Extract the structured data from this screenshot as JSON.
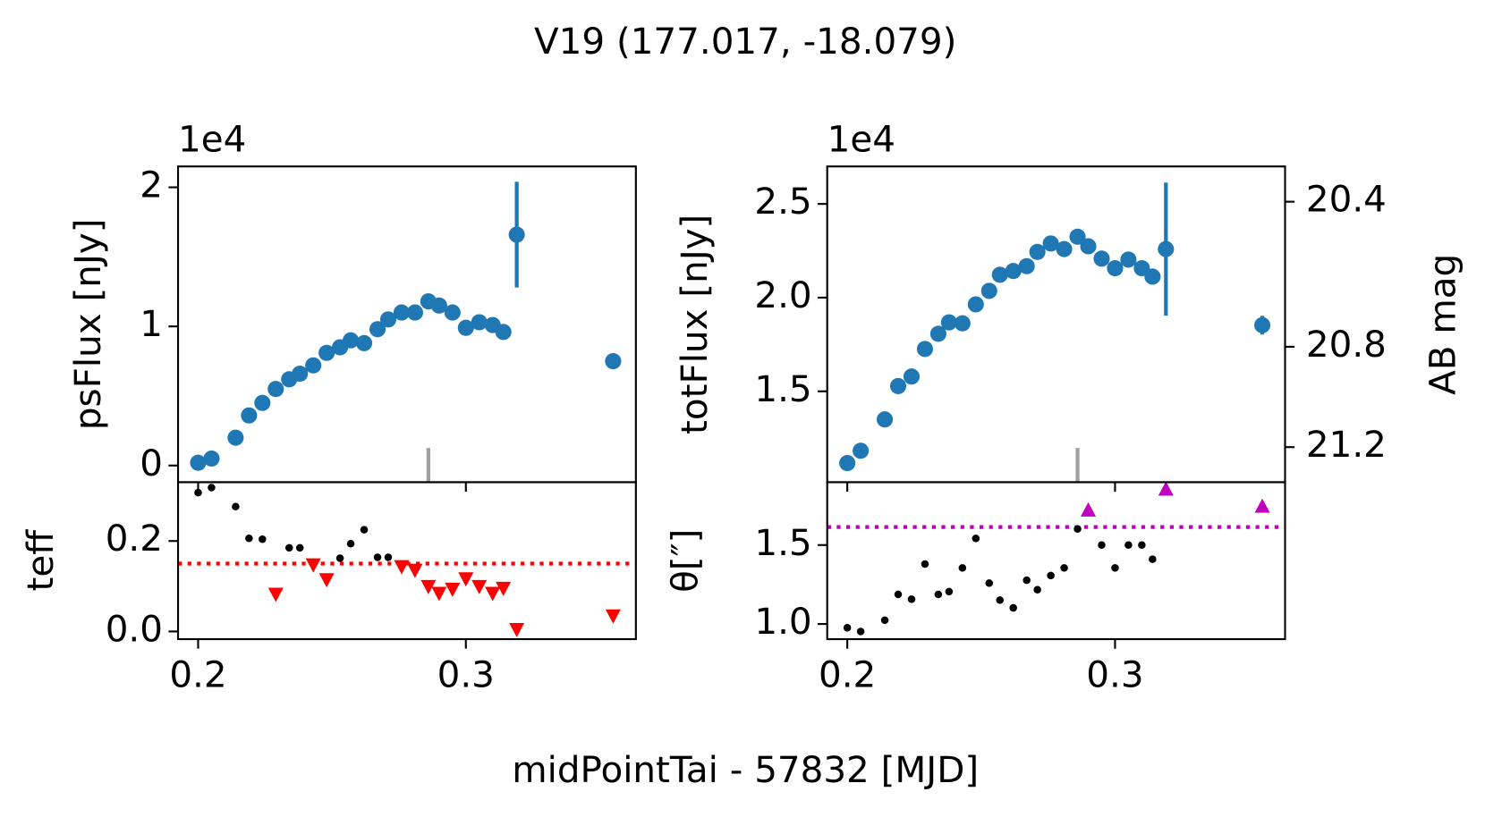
{
  "title": "V19 (177.017, -18.079)",
  "xlabel": "midPointTai - 57832 [MJD]",
  "chart_data": [
    {
      "type": "errorbar",
      "ylabel": "psFlux [nJy]",
      "offset_label": "1e4",
      "xlim": [
        0.1925,
        0.3635
      ],
      "xticks": [
        0.2,
        0.3
      ],
      "xticklabels": false,
      "ylim": [
        -0.12,
        2.15
      ],
      "yticks": [
        0,
        1,
        2
      ],
      "marker_x": 0.286,
      "marker_color": "#a0a0a0",
      "series": [
        {
          "color": "#1f77b4",
          "x": [
            0.2,
            0.205,
            0.214,
            0.219,
            0.224,
            0.229,
            0.234,
            0.238,
            0.243,
            0.248,
            0.253,
            0.257,
            0.262,
            0.267,
            0.271,
            0.276,
            0.281,
            0.286,
            0.29,
            0.295,
            0.3,
            0.305,
            0.31,
            0.314,
            0.319,
            0.355
          ],
          "values": [
            0.02,
            0.05,
            0.2,
            0.36,
            0.45,
            0.55,
            0.62,
            0.66,
            0.72,
            0.81,
            0.85,
            0.9,
            0.88,
            0.98,
            1.05,
            1.1,
            1.1,
            1.18,
            1.15,
            1.1,
            0.99,
            1.03,
            1.01,
            0.96,
            1.66,
            0.75
          ],
          "errors": [
            0.02,
            0.02,
            0.02,
            0.02,
            0.02,
            0.02,
            0.02,
            0.02,
            0.02,
            0.02,
            0.02,
            0.02,
            0.02,
            0.02,
            0.02,
            0.02,
            0.02,
            0.02,
            0.02,
            0.02,
            0.02,
            0.02,
            0.02,
            0.02,
            0.38,
            0.04
          ]
        }
      ]
    },
    {
      "type": "scatter",
      "ylabel": "teff",
      "xlim": [
        0.1925,
        0.3635
      ],
      "xticks": [
        0.2,
        0.3
      ],
      "xticklabels": true,
      "ylim": [
        -0.017,
        0.33
      ],
      "yticks": [
        {
          "value": 0,
          "label": "0.0"
        },
        0.2
      ],
      "hline": {
        "value": 0.15,
        "color": "#ff0000"
      },
      "series": [
        {
          "color": "#000000",
          "marker": "dot",
          "x": [
            0.2,
            0.205,
            0.214,
            0.219,
            0.224,
            0.234,
            0.238,
            0.253,
            0.257,
            0.262,
            0.267,
            0.271
          ],
          "values": [
            0.307,
            0.318,
            0.276,
            0.206,
            0.204,
            0.185,
            0.185,
            0.162,
            0.194,
            0.225,
            0.164,
            0.164
          ]
        },
        {
          "color": "#ff0000",
          "marker": "triangle-down",
          "x": [
            0.229,
            0.243,
            0.248,
            0.276,
            0.281,
            0.286,
            0.29,
            0.295,
            0.3,
            0.305,
            0.31,
            0.314,
            0.319,
            0.355
          ],
          "values": [
            0.082,
            0.147,
            0.114,
            0.143,
            0.135,
            0.099,
            0.084,
            0.093,
            0.116,
            0.099,
            0.084,
            0.095,
            0.004,
            0.034
          ]
        }
      ]
    },
    {
      "type": "errorbar",
      "ylabel": "totFlux [nJy]",
      "offset_label": "1e4",
      "y2label": "AB mag",
      "xlim": [
        0.1925,
        0.3635
      ],
      "xticks": [
        0.2,
        0.3
      ],
      "xticklabels": false,
      "ylim": [
        1.015,
        2.7
      ],
      "yticks": [
        1.5,
        {
          "value": 2,
          "label": "2.0"
        },
        2.5
      ],
      "y2ticks": [
        20.4,
        20.8,
        21.2
      ],
      "ab_zeropoint": 31.4,
      "marker_x": 0.286,
      "marker_color": "#a0a0a0",
      "series": [
        {
          "color": "#1f77b4",
          "x": [
            0.2,
            0.205,
            0.214,
            0.219,
            0.224,
            0.229,
            0.234,
            0.238,
            0.243,
            0.248,
            0.253,
            0.257,
            0.262,
            0.267,
            0.271,
            0.276,
            0.281,
            0.286,
            0.29,
            0.295,
            0.3,
            0.305,
            0.31,
            0.314,
            0.319,
            0.355
          ],
          "values": [
            1.117,
            1.183,
            1.35,
            1.528,
            1.579,
            1.726,
            1.807,
            1.868,
            1.863,
            1.964,
            2.036,
            2.122,
            2.142,
            2.168,
            2.244,
            2.289,
            2.259,
            2.325,
            2.274,
            2.208,
            2.157,
            2.203,
            2.157,
            2.112,
            2.259,
            1.853
          ],
          "errors": [
            0.02,
            0.02,
            0.02,
            0.02,
            0.02,
            0.02,
            0.02,
            0.02,
            0.02,
            0.02,
            0.02,
            0.02,
            0.02,
            0.02,
            0.02,
            0.02,
            0.02,
            0.02,
            0.02,
            0.02,
            0.02,
            0.02,
            0.02,
            0.02,
            0.355,
            0.05
          ]
        }
      ]
    },
    {
      "type": "scatter",
      "ylabel": "θ[″]",
      "xlim": [
        0.1925,
        0.3635
      ],
      "xticks": [
        0.2,
        0.3
      ],
      "xticklabels": true,
      "ylim": [
        0.904,
        1.898
      ],
      "yticks": [
        {
          "value": 1,
          "label": "1.0"
        },
        1.5
      ],
      "hline": {
        "value": 1.614,
        "color": "#bf00bf"
      },
      "series": [
        {
          "color": "#000000",
          "marker": "dot",
          "x": [
            0.2,
            0.205,
            0.214,
            0.219,
            0.224,
            0.229,
            0.234,
            0.238,
            0.243,
            0.248,
            0.253,
            0.257,
            0.262,
            0.267,
            0.271,
            0.276,
            0.281,
            0.286,
            0.295,
            0.3,
            0.305,
            0.31,
            0.314
          ],
          "values": [
            0.976,
            0.952,
            1.024,
            1.187,
            1.157,
            1.38,
            1.187,
            1.205,
            1.355,
            1.542,
            1.259,
            1.151,
            1.102,
            1.277,
            1.217,
            1.307,
            1.355,
            1.602,
            1.5,
            1.355,
            1.5,
            1.5,
            1.41
          ]
        },
        {
          "color": "#bf00bf",
          "marker": "triangle-up",
          "x": [
            0.29,
            0.319,
            0.355
          ],
          "values": [
            1.723,
            1.855,
            1.747
          ]
        }
      ]
    }
  ]
}
